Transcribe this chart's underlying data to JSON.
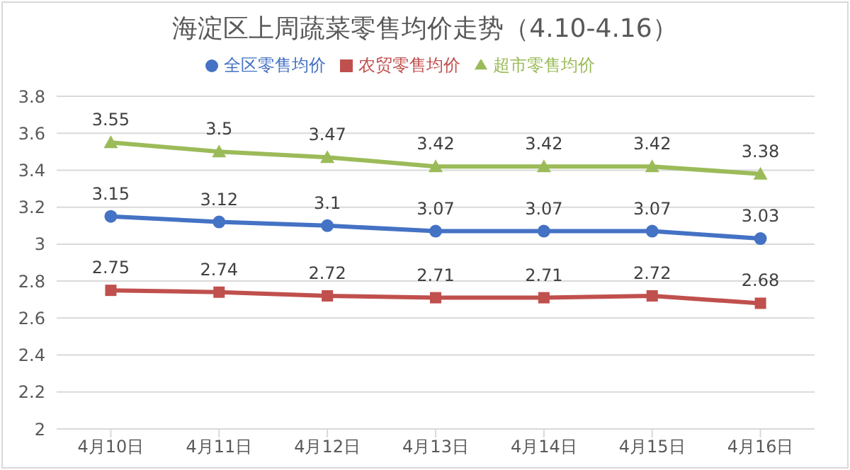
{
  "chart_data": {
    "type": "line",
    "title": "海淀区上周蔬菜零售均价走势（4.10-4.16）",
    "categories": [
      "4月10日",
      "4月11日",
      "4月12日",
      "4月13日",
      "4月14日",
      "4月15日",
      "4月16日"
    ],
    "series": [
      {
        "name": "全区零售均价",
        "color": "#4472c4",
        "marker": "circle",
        "values": [
          3.15,
          3.12,
          3.1,
          3.07,
          3.07,
          3.07,
          3.03
        ]
      },
      {
        "name": "农贸零售均价",
        "color": "#c0504d",
        "marker": "square",
        "values": [
          2.75,
          2.74,
          2.72,
          2.71,
          2.71,
          2.72,
          2.68
        ]
      },
      {
        "name": "超市零售均价",
        "color": "#9bbb59",
        "marker": "triangle",
        "values": [
          3.55,
          3.5,
          3.47,
          3.42,
          3.42,
          3.42,
          3.38
        ]
      }
    ],
    "ylim": [
      2,
      3.8
    ],
    "yticks": [
      2,
      2.2,
      2.4,
      2.6,
      2.8,
      3,
      3.2,
      3.4,
      3.6,
      3.8
    ],
    "grid": "y",
    "legend": "top",
    "data_labels": true,
    "line_style": "solid"
  }
}
